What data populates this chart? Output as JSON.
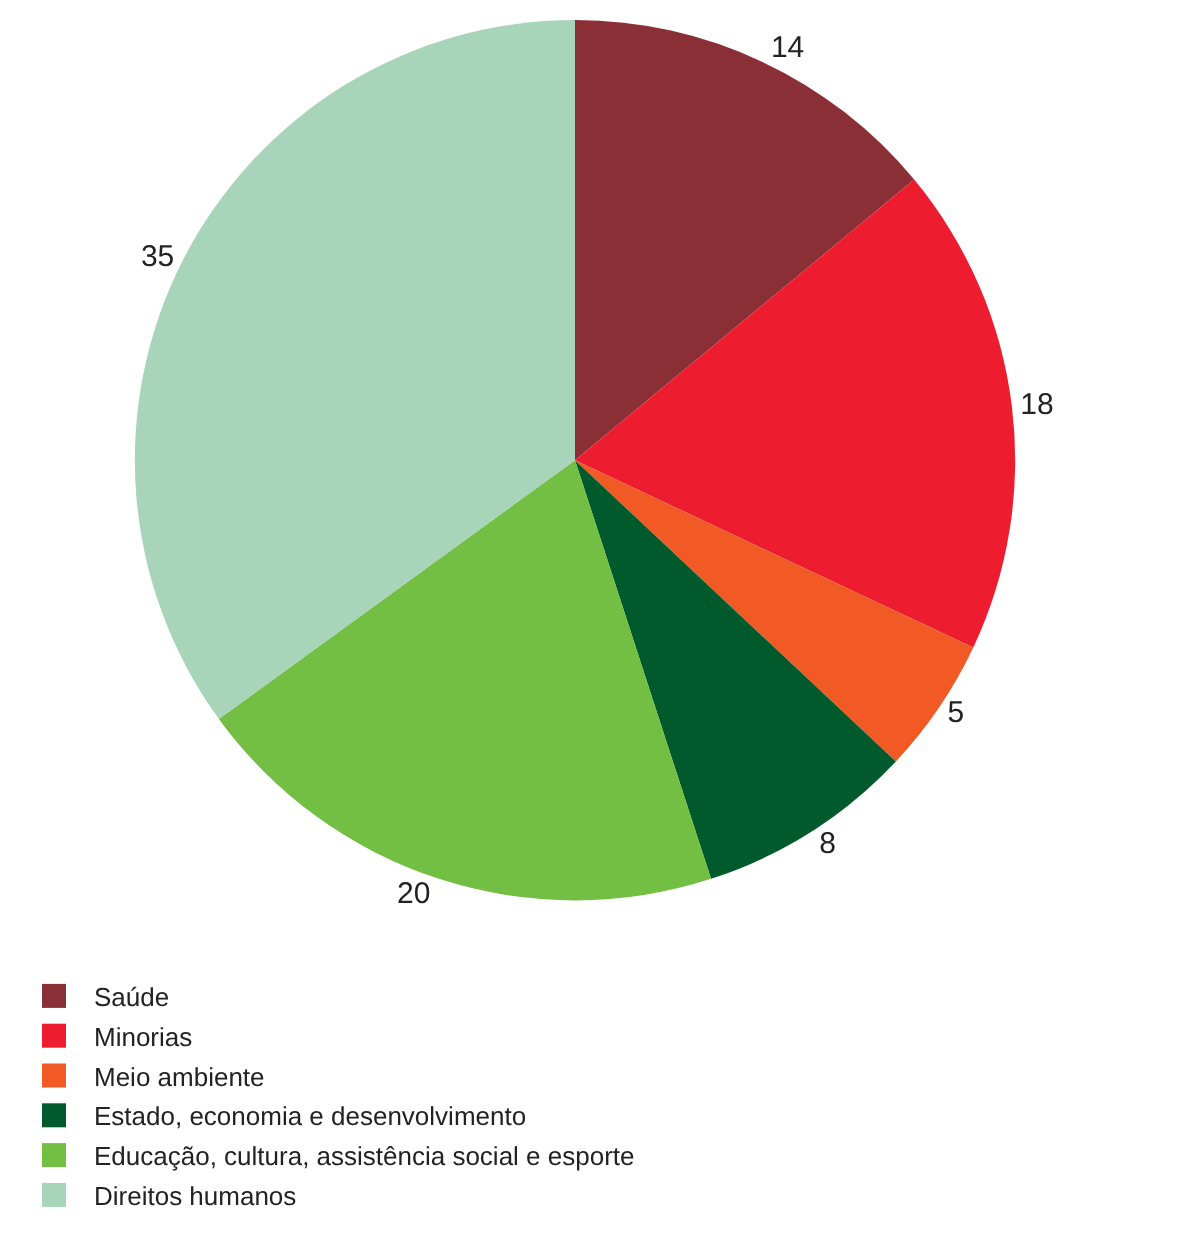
{
  "chart_data": {
    "type": "pie",
    "categories": [
      "Saúde",
      "Minorias",
      "Meio ambiente",
      "Estado, economia e desenvolvimento",
      "Educação, cultura, assistência social e esporte",
      "Direitos humanos"
    ],
    "values": [
      14,
      18,
      5,
      8,
      20,
      35
    ],
    "colors": [
      "#8b2f36",
      "#ed1c2e",
      "#f15a24",
      "#005a2b",
      "#72bf44",
      "#a8d5b9"
    ],
    "data_labels": true,
    "legend": "bottom"
  }
}
